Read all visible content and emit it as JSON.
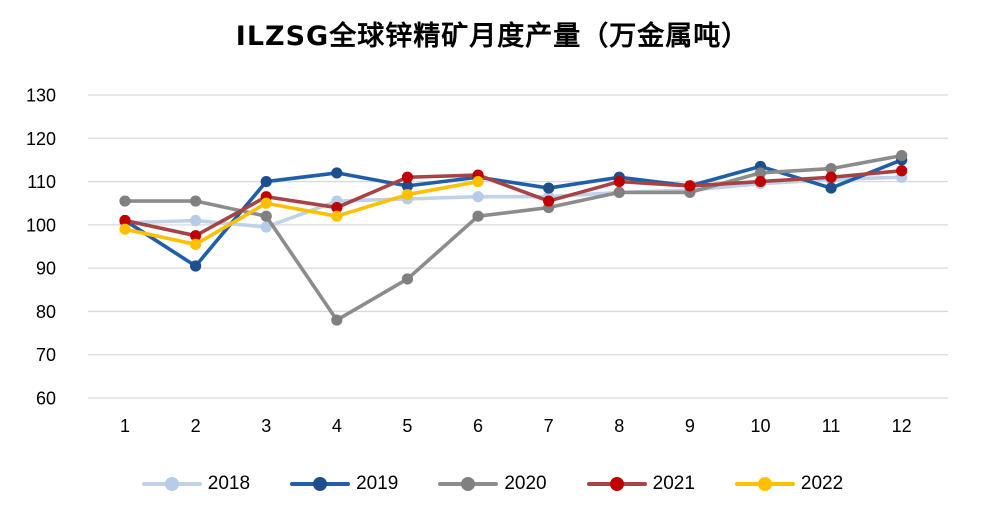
{
  "title": "ILZSG全球锌精矿月度产量（万金属吨）",
  "chart_data": {
    "type": "line",
    "x": [
      1,
      2,
      3,
      4,
      5,
      6,
      7,
      8,
      9,
      10,
      11,
      12
    ],
    "title": "ILZSG全球锌精矿月度产量（万金属吨）",
    "xlabel": "",
    "ylabel": "",
    "ylim": [
      60,
      130
    ],
    "ytick_step": 10,
    "grid": "horizontal",
    "gridline_color": "#d9d9d9",
    "legend_position": "bottom",
    "series": [
      {
        "name": "2018",
        "color": "#BFD2EA",
        "marker_color": "#B7CCE6",
        "values": [
          100.5,
          101,
          99.5,
          105.5,
          106,
          106.5,
          106.5,
          107.5,
          108,
          109.5,
          110.5,
          111
        ]
      },
      {
        "name": "2019",
        "color": "#1F5FAA",
        "marker_color": "#1F4E8C",
        "values": [
          101,
          90.5,
          110,
          112,
          109,
          111,
          108.5,
          111,
          109,
          113.5,
          108.5,
          115
        ]
      },
      {
        "name": "2020",
        "color": "#8C8C8C",
        "marker_color": "#808080",
        "values": [
          105.5,
          105.5,
          102,
          78,
          87.5,
          102,
          104,
          107.5,
          107.5,
          112,
          113,
          116
        ]
      },
      {
        "name": "2021",
        "color": "#A64345",
        "marker_color": "#C00000",
        "values": [
          101,
          97.5,
          106.5,
          104,
          111,
          111.5,
          105.5,
          110,
          109,
          110,
          111,
          112.5
        ]
      },
      {
        "name": "2022",
        "color": "#FFC000",
        "marker_color": "#FFC000",
        "values": [
          99,
          95.5,
          105,
          102,
          107,
          110
        ]
      }
    ]
  }
}
